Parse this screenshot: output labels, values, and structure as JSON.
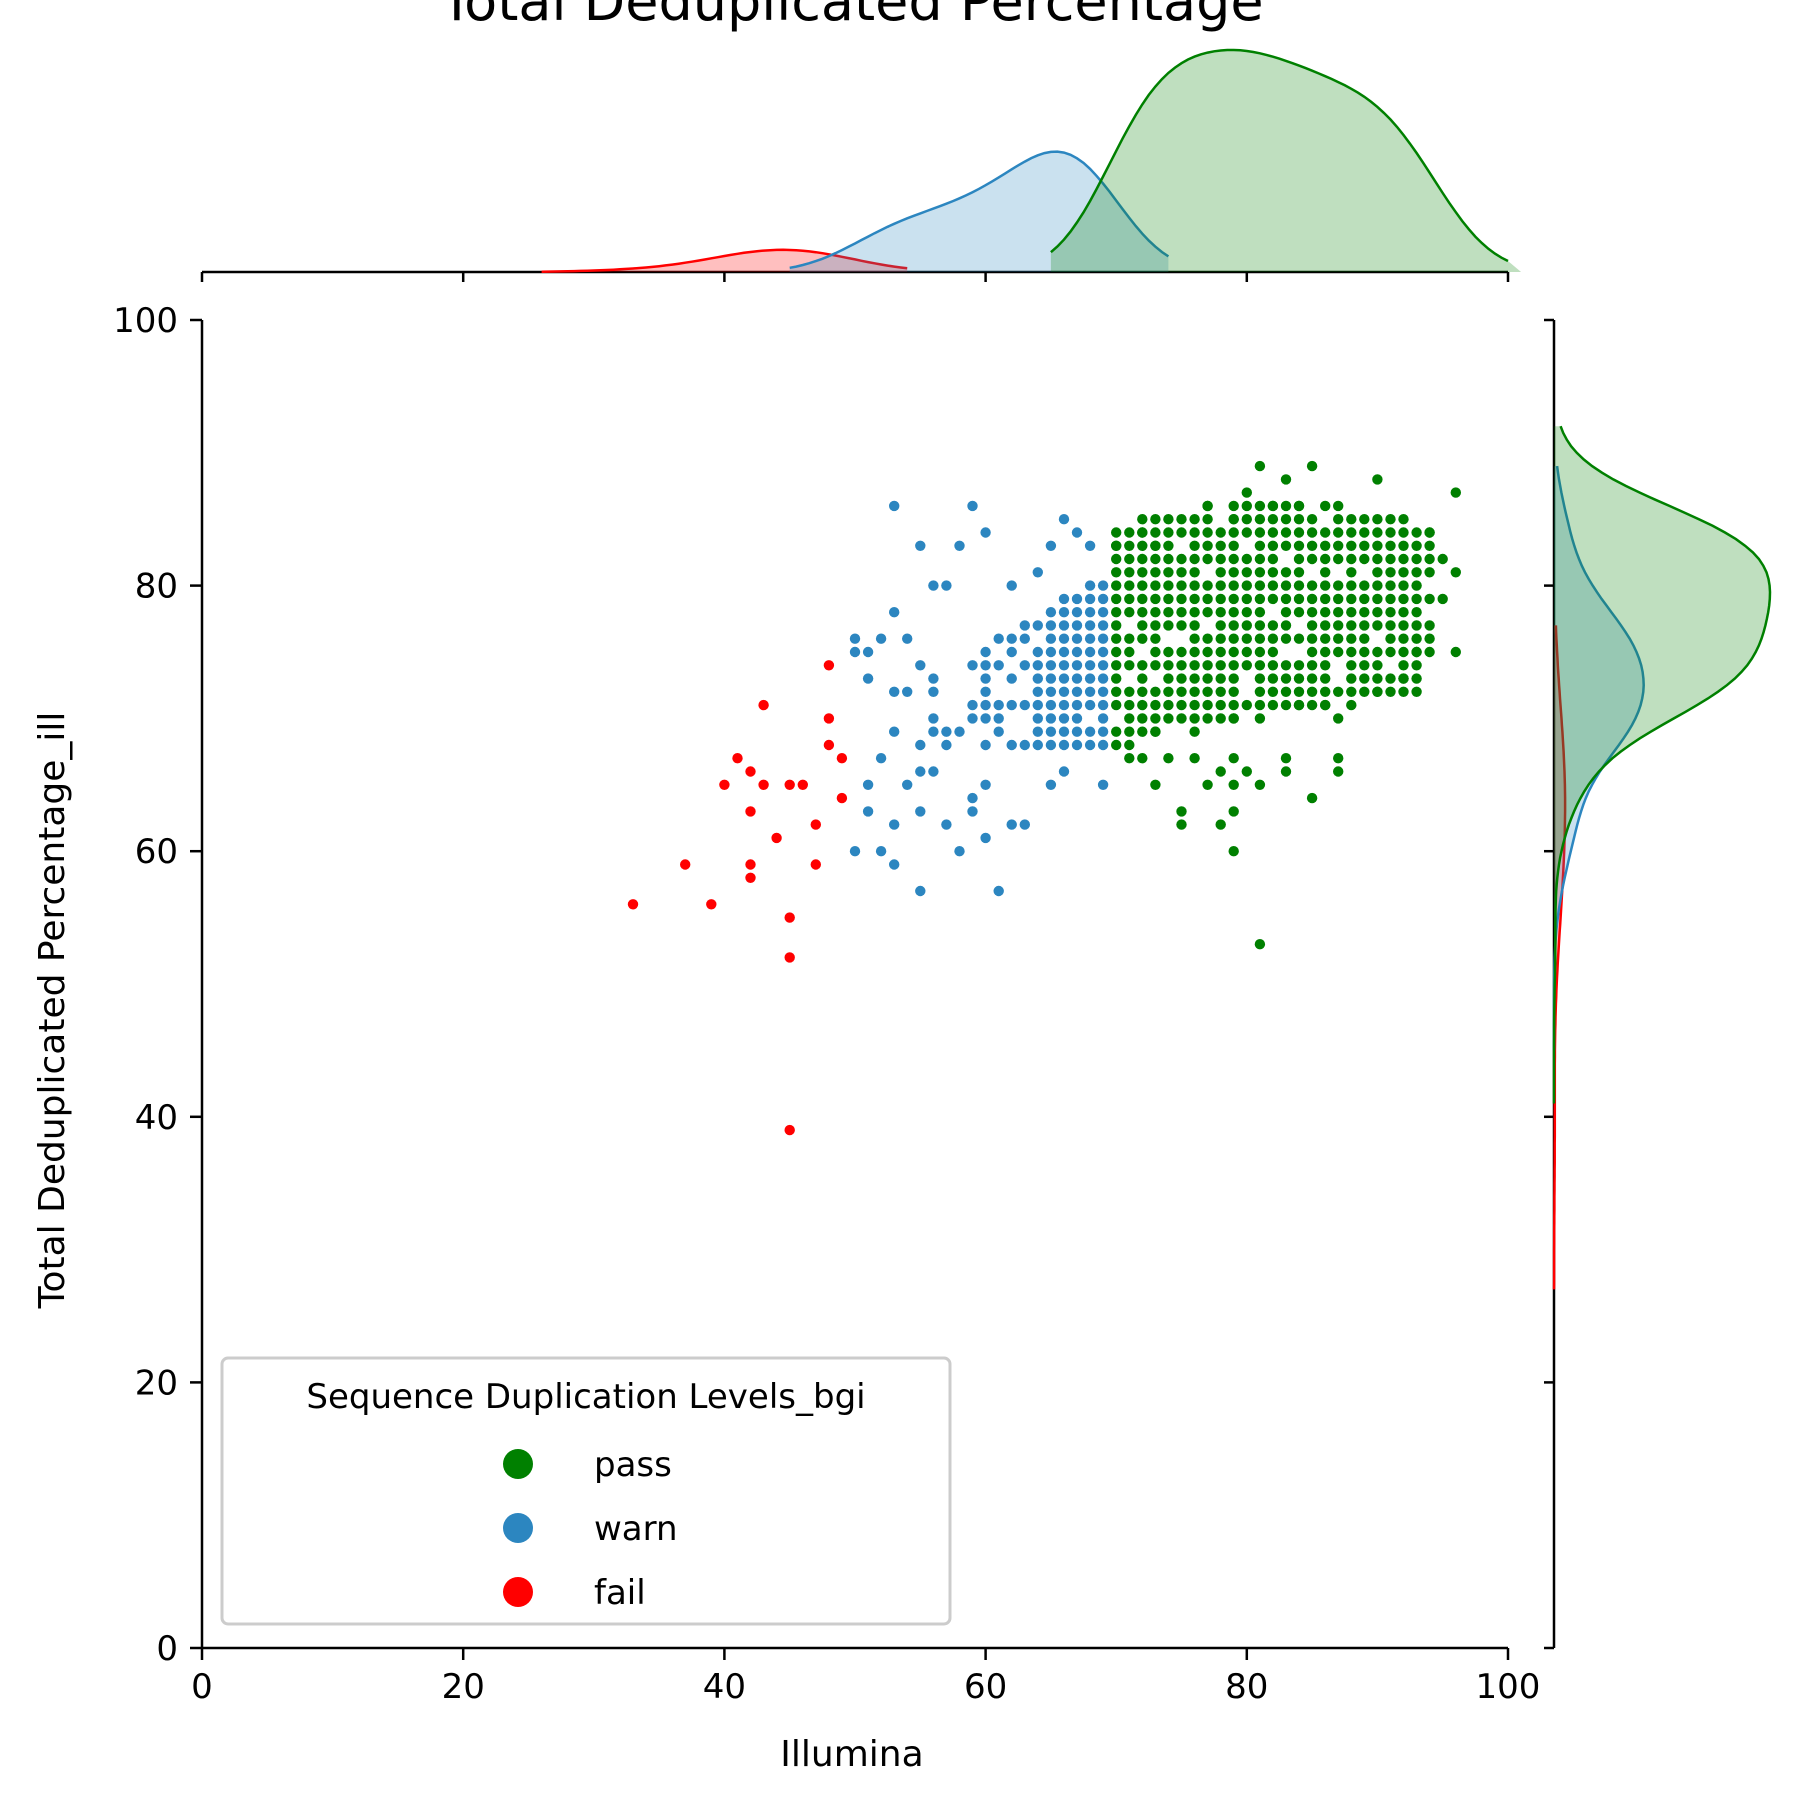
{
  "chart_data": {
    "type": "scatter",
    "title": "Total Deduplicated Percentage",
    "xlabel": "Illumina",
    "ylabel": "Total Deduplicated Percentage_ill",
    "xlim": [
      0,
      100
    ],
    "ylim": [
      0,
      100
    ],
    "x_ticks": [
      "0",
      "20",
      "40",
      "60",
      "80",
      "100"
    ],
    "y_ticks": [
      "0",
      "20",
      "40",
      "60",
      "80",
      "100"
    ],
    "grid": false,
    "legend": {
      "title": "Sequence Duplication Levels_bgi",
      "placement": "lower-left",
      "entries": [
        "pass",
        "warn",
        "fail"
      ]
    },
    "marginals": "kde",
    "series": [
      {
        "name": "pass",
        "color": "#008000",
        "x_range": [
          70,
          96
        ],
        "points": [
          [
            81,
            89
          ],
          [
            85,
            89
          ],
          [
            83,
            88
          ],
          [
            90,
            88
          ],
          [
            96,
            87
          ],
          [
            80,
            87
          ],
          [
            77,
            86
          ],
          [
            82,
            86
          ],
          [
            84,
            86
          ],
          [
            79,
            85
          ],
          [
            72,
            84
          ],
          [
            94,
            84
          ],
          [
            73,
            83
          ],
          [
            70,
            83
          ],
          [
            95,
            82
          ],
          [
            96,
            81
          ],
          [
            95,
            79
          ],
          [
            96,
            75
          ],
          [
            93,
            75
          ],
          [
            92,
            73
          ],
          [
            90,
            72
          ],
          [
            88,
            71
          ],
          [
            87,
            70
          ],
          [
            86,
            71
          ],
          [
            85,
            72
          ],
          [
            84,
            71
          ],
          [
            81,
            70
          ],
          [
            79,
            70
          ],
          [
            76,
            69
          ],
          [
            73,
            69
          ],
          [
            71,
            68
          ],
          [
            70,
            68
          ],
          [
            71,
            67
          ],
          [
            72,
            67
          ],
          [
            74,
            67
          ],
          [
            76,
            67
          ],
          [
            79,
            67
          ],
          [
            83,
            67
          ],
          [
            87,
            67
          ],
          [
            78,
            66
          ],
          [
            80,
            66
          ],
          [
            83,
            66
          ],
          [
            87,
            66
          ],
          [
            79,
            65
          ],
          [
            81,
            65
          ],
          [
            73,
            65
          ],
          [
            77,
            65
          ],
          [
            85,
            64
          ],
          [
            75,
            63
          ],
          [
            79,
            63
          ],
          [
            75,
            62
          ],
          [
            78,
            62
          ],
          [
            79,
            60
          ],
          [
            81,
            53
          ]
        ]
      },
      {
        "name": "warn",
        "color": "#2c86c0",
        "x_range": [
          50,
          69
        ],
        "points": [
          [
            53,
            86
          ],
          [
            59,
            86
          ],
          [
            66,
            85
          ],
          [
            67,
            84
          ],
          [
            68,
            83
          ],
          [
            60,
            84
          ],
          [
            55,
            83
          ],
          [
            58,
            83
          ],
          [
            65,
            83
          ],
          [
            56,
            80
          ],
          [
            57,
            80
          ],
          [
            62,
            80
          ],
          [
            64,
            81
          ],
          [
            53,
            78
          ],
          [
            50,
            76
          ],
          [
            52,
            76
          ],
          [
            54,
            76
          ],
          [
            51,
            75
          ],
          [
            50,
            75
          ],
          [
            51,
            73
          ],
          [
            53,
            72
          ],
          [
            54,
            72
          ],
          [
            55,
            74
          ],
          [
            53,
            69
          ],
          [
            55,
            68
          ],
          [
            52,
            67
          ],
          [
            55,
            66
          ],
          [
            56,
            66
          ],
          [
            51,
            65
          ],
          [
            54,
            65
          ],
          [
            51,
            63
          ],
          [
            53,
            62
          ],
          [
            55,
            63
          ],
          [
            57,
            62
          ],
          [
            59,
            63
          ],
          [
            60,
            61
          ],
          [
            62,
            62
          ],
          [
            63,
            62
          ],
          [
            58,
            60
          ],
          [
            55,
            57
          ],
          [
            61,
            57
          ],
          [
            50,
            60
          ],
          [
            52,
            60
          ],
          [
            53,
            59
          ],
          [
            65,
            65
          ],
          [
            66,
            66
          ],
          [
            69,
            65
          ],
          [
            60,
            65
          ],
          [
            59,
            64
          ]
        ]
      },
      {
        "name": "fail",
        "color": "#ff0000",
        "x_range": [
          33,
          49
        ],
        "points": [
          [
            48,
            74
          ],
          [
            43,
            71
          ],
          [
            48,
            70
          ],
          [
            48,
            68
          ],
          [
            41,
            67
          ],
          [
            49,
            67
          ],
          [
            42,
            66
          ],
          [
            40,
            65
          ],
          [
            43,
            65
          ],
          [
            45,
            65
          ],
          [
            46,
            65
          ],
          [
            49,
            64
          ],
          [
            42,
            63
          ],
          [
            47,
            62
          ],
          [
            44,
            61
          ],
          [
            37,
            59
          ],
          [
            42,
            59
          ],
          [
            47,
            59
          ],
          [
            42,
            58
          ],
          [
            33,
            56
          ],
          [
            39,
            56
          ],
          [
            45,
            55
          ],
          [
            45,
            52
          ],
          [
            45,
            39
          ]
        ]
      }
    ]
  }
}
